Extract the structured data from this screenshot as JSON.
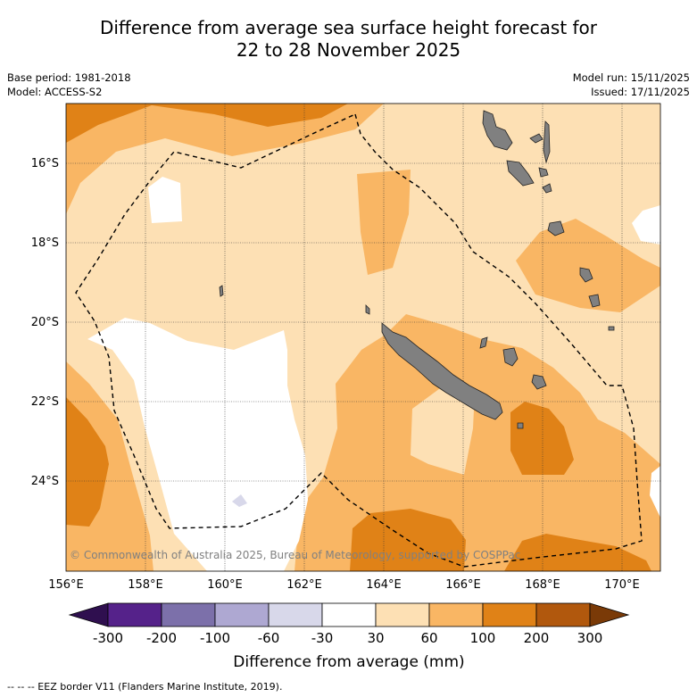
{
  "title_line1": "Difference from average sea surface height forecast for",
  "title_line2": "22 to 28 November 2025",
  "base_period": "Base period: 1981-2018",
  "model": "Model: ACCESS-S2",
  "model_run": "Model run: 15/11/2025",
  "issued": "Issued: 17/11/2025",
  "copyright": "© Commonwealth of Australia 2025, Bureau of Meteorology, supported by COSPPac",
  "lat_labels": [
    "16°S",
    "18°S",
    "20°S",
    "22°S",
    "24°S"
  ],
  "lon_labels": [
    "156°E",
    "158°E",
    "160°E",
    "162°E",
    "164°E",
    "166°E",
    "168°E",
    "170°E"
  ],
  "colorbar": {
    "ticks": [
      "-300",
      "-200",
      "-100",
      "-60",
      "-30",
      "30",
      "60",
      "100",
      "200",
      "300"
    ],
    "title": "Difference from average (mm)",
    "colors": [
      "#2f0f4f",
      "#55228a",
      "#7c70aa",
      "#aea8d2",
      "#d8d8ea",
      "#ffffff",
      "#fde0b4",
      "#f9b664",
      "#e08217",
      "#b1580d",
      "#7a3a07"
    ]
  },
  "footer": "--  --  -- EEZ border V11 (Flanders Marine Institute, 2019).",
  "colors": {
    "land": "#808080",
    "c30_60": "#fde0b4",
    "c60_100": "#f9b664",
    "c100_200": "#e08217",
    "neutral": "#ffffff"
  }
}
